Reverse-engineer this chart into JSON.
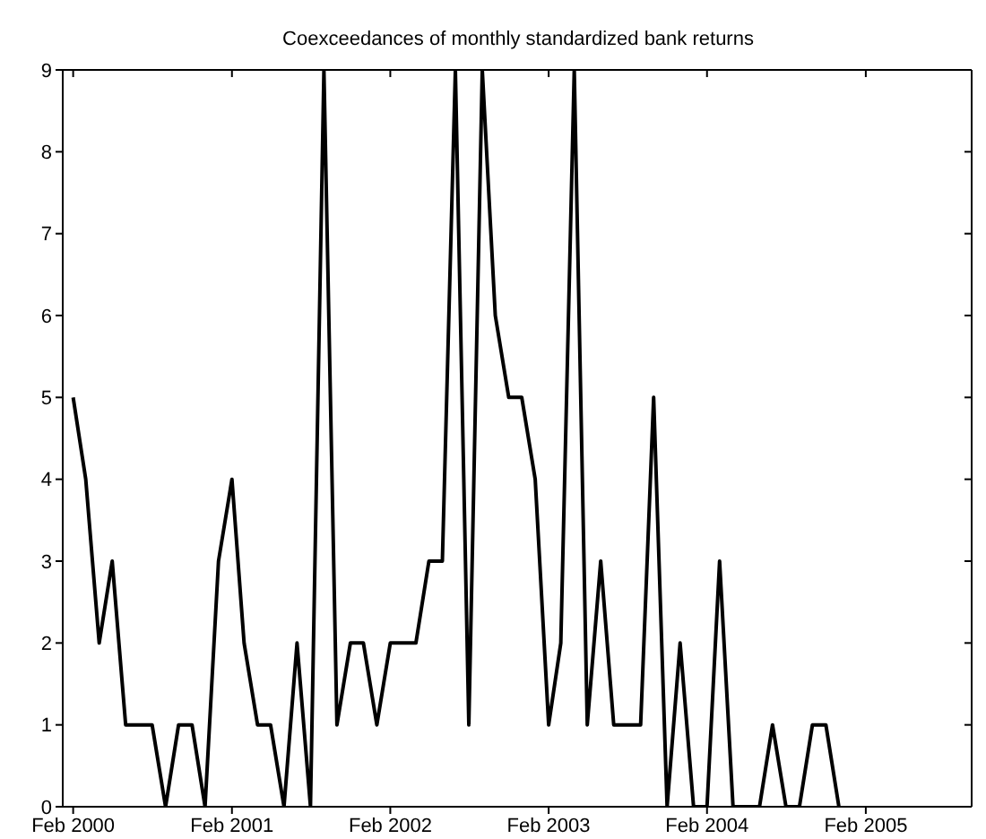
{
  "chart_data": {
    "type": "line",
    "title": "Coexceedances of monthly standardized bank returns",
    "x": [
      "2000-02",
      "2000-03",
      "2000-04",
      "2000-05",
      "2000-06",
      "2000-07",
      "2000-08",
      "2000-09",
      "2000-10",
      "2000-11",
      "2000-12",
      "2001-01",
      "2001-02",
      "2001-03",
      "2001-04",
      "2001-05",
      "2001-06",
      "2001-07",
      "2001-08",
      "2001-09",
      "2001-10",
      "2001-11",
      "2001-12",
      "2002-01",
      "2002-02",
      "2002-03",
      "2002-04",
      "2002-05",
      "2002-06",
      "2002-07",
      "2002-08",
      "2002-09",
      "2002-10",
      "2002-11",
      "2002-12",
      "2003-01",
      "2003-02",
      "2003-03",
      "2003-04",
      "2003-05",
      "2003-06",
      "2003-07",
      "2003-08",
      "2003-09",
      "2003-10",
      "2003-11",
      "2003-12",
      "2004-01",
      "2004-02",
      "2004-03",
      "2004-04",
      "2004-05",
      "2004-06",
      "2004-07",
      "2004-08",
      "2004-09",
      "2004-10",
      "2004-11",
      "2004-12"
    ],
    "series": [
      {
        "color": "#000000",
        "values": [
          5,
          4,
          2,
          3,
          1,
          1,
          1,
          0,
          1,
          1,
          0,
          3,
          4,
          2,
          1,
          1,
          0,
          2,
          0,
          9,
          1,
          2,
          2,
          1,
          2,
          2,
          2,
          3,
          3,
          9,
          1,
          9,
          6,
          5,
          5,
          4,
          1,
          2,
          9,
          1,
          3,
          1,
          1,
          1,
          5,
          0,
          2,
          0,
          0,
          3,
          0,
          0,
          0,
          1,
          0,
          0,
          1,
          1,
          0
        ]
      }
    ],
    "xlim": [
      "2000-01-08",
      "2005-10-03"
    ],
    "xticks": [
      {
        "value": "2000-02",
        "label": "Feb 2000"
      },
      {
        "value": "2001-02",
        "label": "Feb 2001"
      },
      {
        "value": "2002-02",
        "label": "Feb 2002"
      },
      {
        "value": "2003-02",
        "label": "Feb 2003"
      },
      {
        "value": "2004-02",
        "label": "Feb 2004"
      },
      {
        "value": "2005-02",
        "label": "Feb 2005"
      }
    ],
    "ylim": [
      0,
      9
    ],
    "yticks": [
      0,
      1,
      2,
      3,
      4,
      5,
      6,
      7,
      8,
      9
    ],
    "legend": false,
    "marker": "none",
    "line_style": "solid"
  }
}
